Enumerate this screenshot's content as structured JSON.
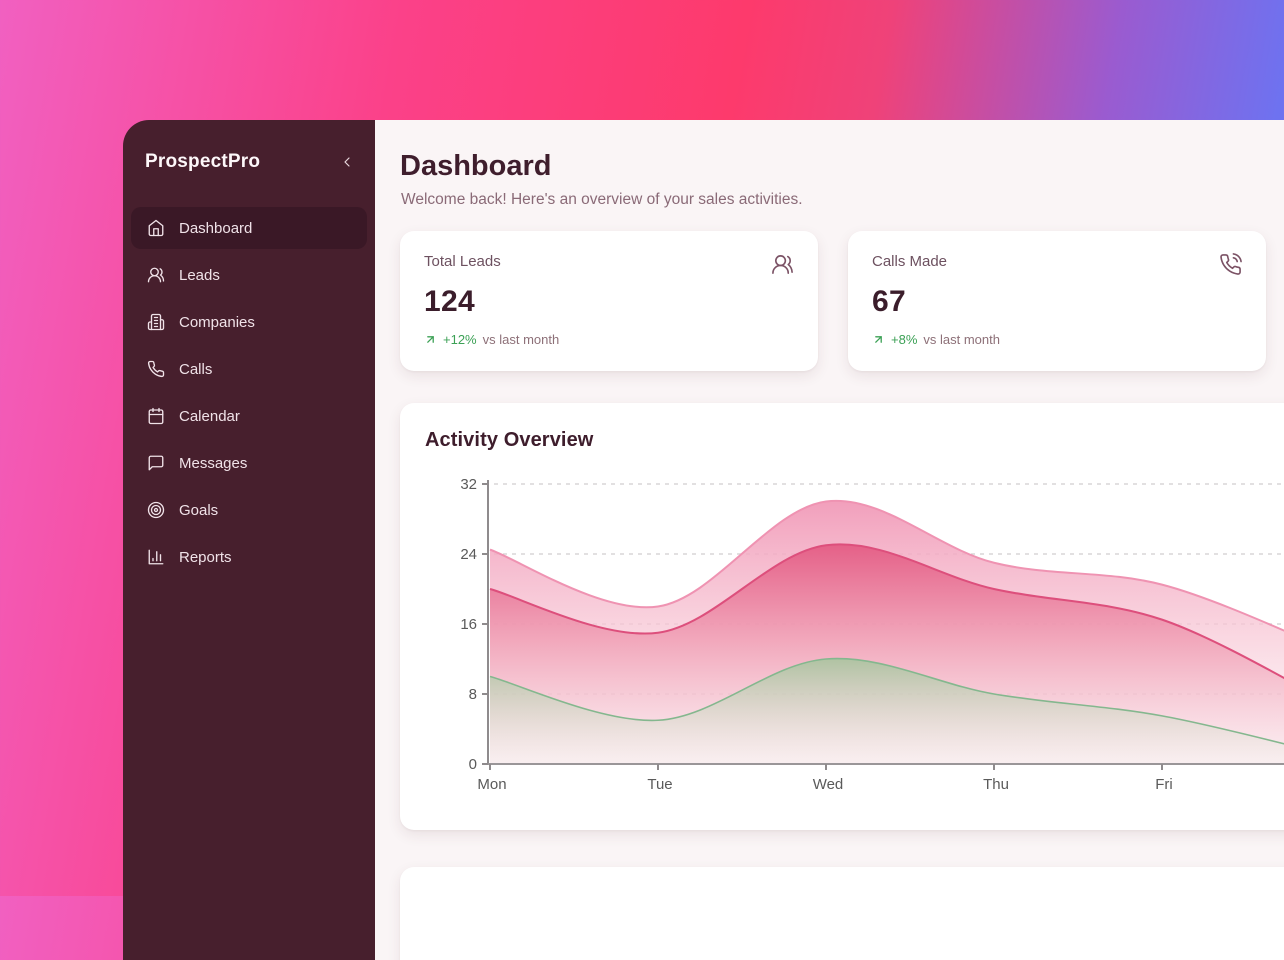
{
  "app": {
    "name": "ProspectPro"
  },
  "sidebar": {
    "items": [
      {
        "label": "Dashboard",
        "icon": "home-icon",
        "active": true
      },
      {
        "label": "Leads",
        "icon": "users-icon",
        "active": false
      },
      {
        "label": "Companies",
        "icon": "building-icon",
        "active": false
      },
      {
        "label": "Calls",
        "icon": "phone-icon",
        "active": false
      },
      {
        "label": "Calendar",
        "icon": "calendar-icon",
        "active": false
      },
      {
        "label": "Messages",
        "icon": "message-icon",
        "active": false
      },
      {
        "label": "Goals",
        "icon": "target-icon",
        "active": false
      },
      {
        "label": "Reports",
        "icon": "bar-chart-icon",
        "active": false
      }
    ]
  },
  "header": {
    "title": "Dashboard",
    "subtitle": "Welcome back! Here's an overview of your sales activities."
  },
  "stats": [
    {
      "label": "Total Leads",
      "value": "124",
      "trend": "+12%",
      "trend_suffix": "vs last month",
      "icon": "users-icon",
      "trend_direction": "up"
    },
    {
      "label": "Calls Made",
      "value": "67",
      "trend": "+8%",
      "trend_suffix": "vs last month",
      "icon": "phone-call-icon",
      "trend_direction": "up"
    }
  ],
  "chart_card": {
    "title": "Activity Overview"
  },
  "chart_data": {
    "type": "area",
    "title": "Activity Overview",
    "categories": [
      "Mon",
      "Tue",
      "Wed",
      "Thu",
      "Fri"
    ],
    "series": [
      {
        "name": "outer-light-pink",
        "values": [
          24.5,
          18,
          30,
          23,
          20.5,
          13
        ],
        "stroke": "#ef93b2"
      },
      {
        "name": "middle-rose",
        "values": [
          20,
          15,
          25,
          20,
          16.5,
          7
        ],
        "stroke": "#dd4f7c"
      },
      {
        "name": "bottom-green",
        "values": [
          10,
          5,
          12,
          8,
          5.5,
          1
        ],
        "stroke": "#84b78e"
      }
    ],
    "yticks": [
      0,
      8,
      16,
      24,
      32
    ],
    "ylim": [
      0,
      32
    ],
    "xlabel": "",
    "ylabel": "",
    "grid": "dashed-horizontal",
    "legend": "none",
    "note": "curves include a sixth point continuing past Fri, clipped by the right viewport edge"
  },
  "colors": {
    "sidebar_bg": "#471f2d",
    "sidebar_active_bg": "#3a1826",
    "main_bg": "#faf5f6",
    "card_bg": "#ffffff",
    "title_text": "#3f1e2d",
    "muted_text": "#8a6a77",
    "trend_green": "#3ca156",
    "gradient_left_pink": "#f160c1",
    "gradient_mid_red": "#fd3a6c",
    "gradient_right_purple": "#6e72f0"
  }
}
